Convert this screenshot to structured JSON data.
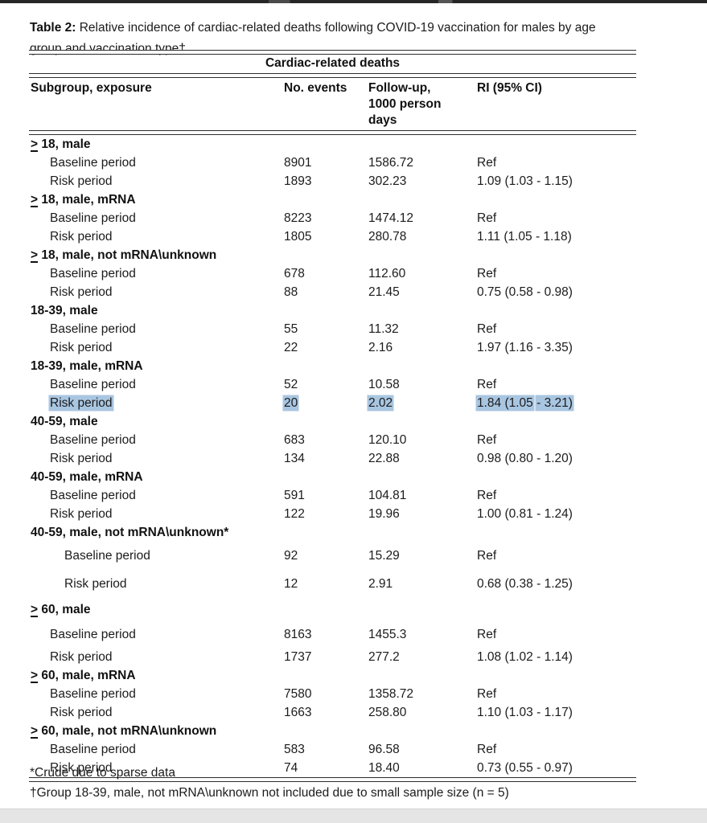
{
  "caption": {
    "label": "Table 2:",
    "line1": " Relative incidence of cardiac-related deaths following COVID-19 vaccination for males by age",
    "line2": "group and vaccination type†"
  },
  "table": {
    "span_header": "Cardiac-related deaths",
    "geq_symbol": ">",
    "highlight_color": "#a9c6e1",
    "columns": {
      "subgroup": "Subgroup, exposure",
      "events": "No. events",
      "followup": "Follow-up, 1000 person days",
      "ri": "RI (95% CI)"
    },
    "groups": [
      {
        "geq": true,
        "label": "18, male",
        "rows": [
          {
            "exposure": "Baseline period",
            "events": "8901",
            "followup": "1586.72",
            "ri": "Ref"
          },
          {
            "exposure": "Risk period",
            "events": "1893",
            "followup": "302.23",
            "ri": "1.09 (1.03 - 1.15)"
          }
        ]
      },
      {
        "geq": true,
        "label": "18, male, mRNA",
        "rows": [
          {
            "exposure": "Baseline period",
            "events": "8223",
            "followup": "1474.12",
            "ri": "Ref"
          },
          {
            "exposure": "Risk period",
            "events": "1805",
            "followup": "280.78",
            "ri": "1.11 (1.05 - 1.18)"
          }
        ]
      },
      {
        "geq": true,
        "label": "18, male, not mRNA\\unknown",
        "rows": [
          {
            "exposure": "Baseline period",
            "events": "678",
            "followup": "112.60",
            "ri": "Ref"
          },
          {
            "exposure": "Risk period",
            "events": "88",
            "followup": "21.45",
            "ri": "0.75 (0.58 - 0.98)"
          }
        ]
      },
      {
        "geq": false,
        "label": "18-39, male",
        "rows": [
          {
            "exposure": "Baseline period",
            "events": "55",
            "followup": "11.32",
            "ri": "Ref"
          },
          {
            "exposure": "Risk period",
            "events": "22",
            "followup": "2.16",
            "ri": "1.97 (1.16 - 3.35)"
          }
        ]
      },
      {
        "geq": false,
        "label": "18-39, male, mRNA",
        "rows": [
          {
            "exposure": "Baseline period",
            "events": "52",
            "followup": "10.58",
            "ri": "Ref"
          },
          {
            "exposure": "Risk period",
            "events": "20",
            "followup": "2.02",
            "ri": "1.84 (1.05 - 3.21)",
            "highlighted": true
          }
        ]
      },
      {
        "geq": false,
        "label": "40-59, male",
        "rows": [
          {
            "exposure": "Baseline period",
            "events": "683",
            "followup": "120.10",
            "ri": "Ref"
          },
          {
            "exposure": "Risk period",
            "events": "134",
            "followup": "22.88",
            "ri": "0.98 (0.80 - 1.20)"
          }
        ]
      },
      {
        "geq": false,
        "label": "40-59, male, mRNA",
        "rows": [
          {
            "exposure": "Baseline period",
            "events": "591",
            "followup": "104.81",
            "ri": "Ref"
          },
          {
            "exposure": "Risk period",
            "events": "122",
            "followup": "19.96",
            "ri": "1.00 (0.81 - 1.24)"
          }
        ]
      },
      {
        "geq": false,
        "label": "40-59, male, not mRNA\\unknown*",
        "rows": [
          {
            "exposure": "Baseline period",
            "events": "92",
            "followup": "15.29",
            "ri": "Ref"
          },
          {
            "exposure": "Risk period",
            "events": "12",
            "followup": "2.91",
            "ri": "0.68 (0.38 - 1.25)"
          }
        ]
      },
      {
        "geq": true,
        "label": "60, male",
        "rows": [
          {
            "exposure": "Baseline period",
            "events": "8163",
            "followup": "1455.3",
            "ri": "Ref"
          },
          {
            "exposure": "Risk period",
            "events": "1737",
            "followup": "277.2",
            "ri": "1.08 (1.02 - 1.14)"
          }
        ]
      },
      {
        "geq": true,
        "label": "60, male, mRNA",
        "rows": [
          {
            "exposure": "Baseline period",
            "events": "7580",
            "followup": "1358.72",
            "ri": "Ref"
          },
          {
            "exposure": "Risk period",
            "events": "1663",
            "followup": "258.80",
            "ri": "1.10 (1.03 - 1.17)"
          }
        ]
      },
      {
        "geq": true,
        "label": "60, male, not mRNA\\unknown",
        "rows": [
          {
            "exposure": "Baseline period",
            "events": "583",
            "followup": "96.58",
            "ri": "Ref"
          },
          {
            "exposure": "Risk period",
            "events": "74",
            "followup": "18.40",
            "ri": "0.73 (0.55 - 0.97)"
          }
        ]
      }
    ]
  },
  "footnotes": [
    "*Crude due to sparse data",
    "†Group 18-39, male, not mRNA\\unknown not included due to small sample size (n = 5)"
  ]
}
